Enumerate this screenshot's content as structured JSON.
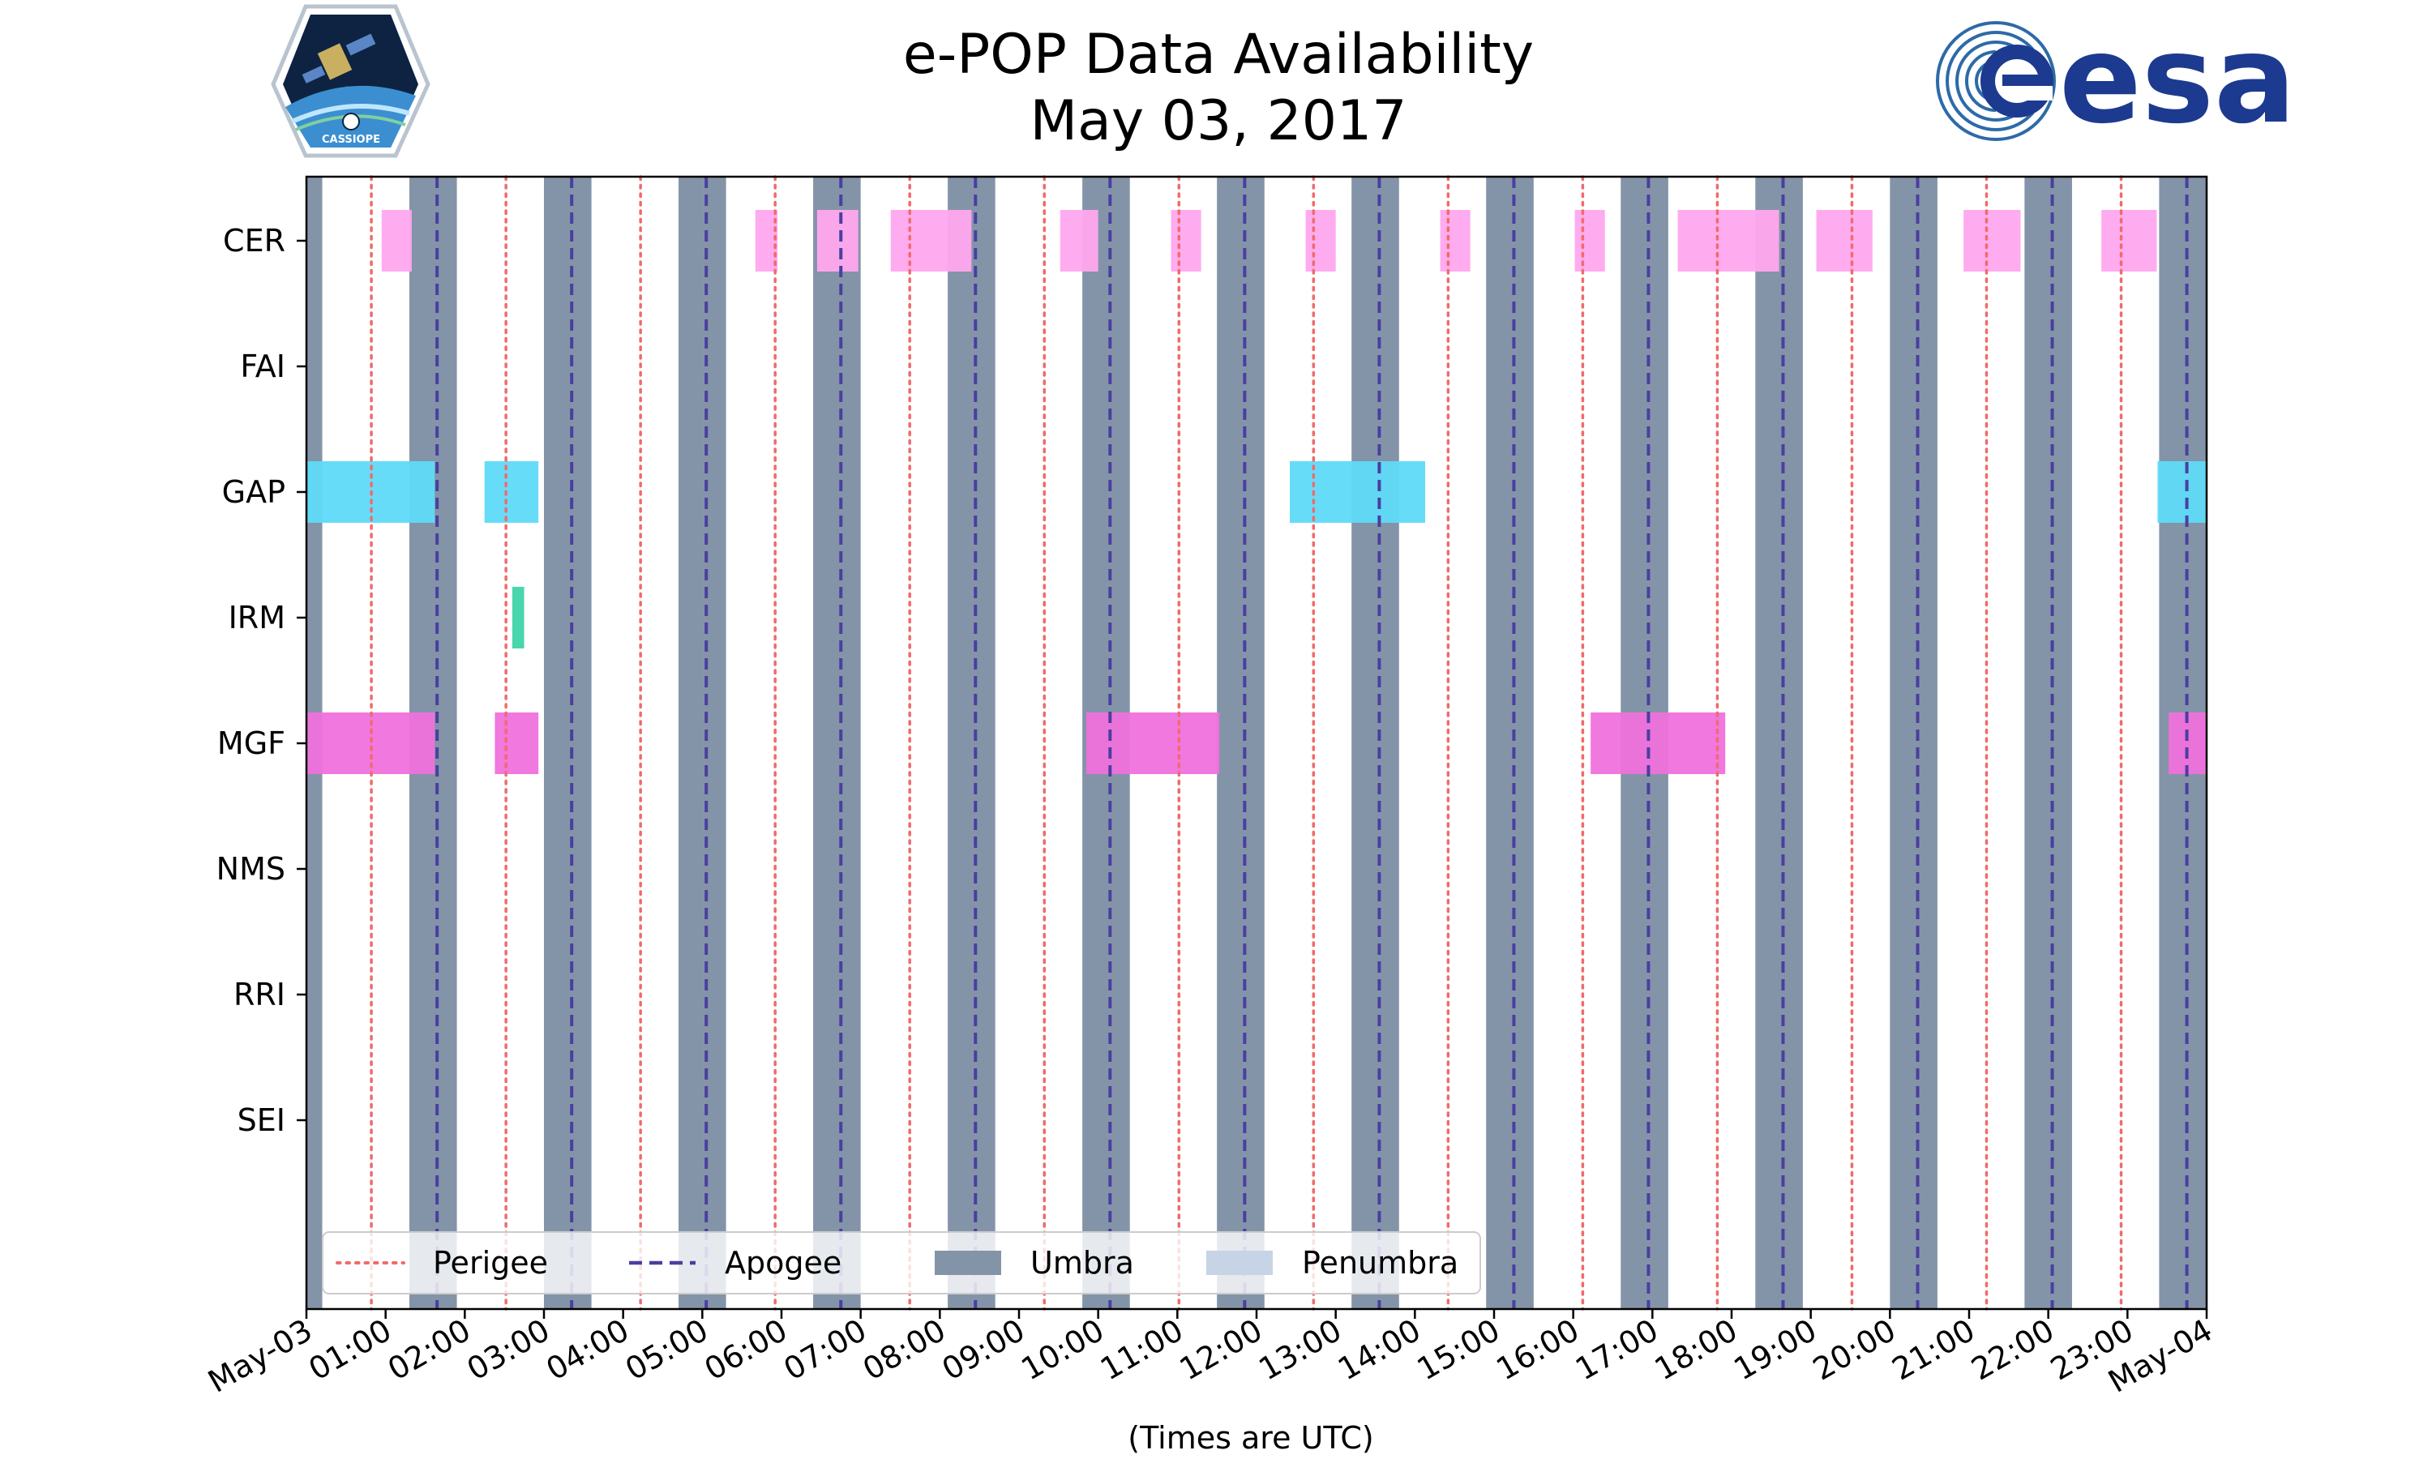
{
  "chart_data": {
    "type": "timeline",
    "title": "e-POP Data Availability",
    "subtitle": "May 03, 2017",
    "xlabel": "(Times are UTC)",
    "x_range_hours": [
      0,
      24
    ],
    "x_tick_labels": [
      "May-03",
      "01:00",
      "02:00",
      "03:00",
      "04:00",
      "05:00",
      "06:00",
      "07:00",
      "08:00",
      "09:00",
      "10:00",
      "11:00",
      "12:00",
      "13:00",
      "14:00",
      "15:00",
      "16:00",
      "17:00",
      "18:00",
      "19:00",
      "20:00",
      "21:00",
      "22:00",
      "23:00",
      "May-04"
    ],
    "instruments": [
      "CER",
      "FAI",
      "GAP",
      "IRM",
      "MGF",
      "NMS",
      "RRI",
      "SEI"
    ],
    "umbra_hours": [
      [
        -0.2,
        0.2
      ],
      [
        1.3,
        1.9
      ],
      [
        3.0,
        3.6
      ],
      [
        4.7,
        5.3
      ],
      [
        6.4,
        7.0
      ],
      [
        8.1,
        8.7
      ],
      [
        9.8,
        10.4
      ],
      [
        11.5,
        12.1
      ],
      [
        13.2,
        13.8
      ],
      [
        14.9,
        15.5
      ],
      [
        16.6,
        17.2
      ],
      [
        18.3,
        18.9
      ],
      [
        20.0,
        20.6
      ],
      [
        21.7,
        22.3
      ],
      [
        23.4,
        24.0
      ]
    ],
    "perigee_hours": [
      0.82,
      2.52,
      4.22,
      5.92,
      7.62,
      9.32,
      11.02,
      12.72,
      14.42,
      16.12,
      17.82,
      19.52,
      21.22,
      22.92
    ],
    "apogee_hours": [
      1.65,
      3.35,
      5.05,
      6.75,
      8.45,
      10.15,
      11.85,
      13.55,
      15.25,
      16.95,
      18.65,
      20.35,
      22.05,
      23.75
    ],
    "availability": {
      "CER": [
        [
          0.95,
          1.33
        ],
        [
          5.67,
          5.95
        ],
        [
          6.45,
          6.97
        ],
        [
          7.38,
          8.4
        ],
        [
          9.52,
          10.0
        ],
        [
          10.92,
          11.3
        ],
        [
          12.62,
          13.0
        ],
        [
          14.32,
          14.7
        ],
        [
          16.02,
          16.4
        ],
        [
          17.32,
          18.6
        ],
        [
          19.07,
          19.78
        ],
        [
          20.93,
          21.65
        ],
        [
          22.67,
          23.37
        ]
      ],
      "FAI": [],
      "GAP": [
        [
          0.0,
          1.62
        ],
        [
          2.25,
          2.93
        ],
        [
          12.42,
          14.13
        ],
        [
          23.38,
          24.0
        ]
      ],
      "IRM": [
        [
          2.6,
          2.75
        ]
      ],
      "MGF": [
        [
          0.0,
          1.62
        ],
        [
          2.38,
          2.93
        ],
        [
          9.85,
          11.53
        ],
        [
          16.22,
          17.92
        ],
        [
          23.52,
          24.0
        ]
      ],
      "NMS": [],
      "RRI": [],
      "SEI": []
    },
    "legend": {
      "placement": "lower-left",
      "entries": [
        {
          "label": "Perigee",
          "style": "dotted",
          "color": "#f06b6b"
        },
        {
          "label": "Apogee",
          "style": "dashed",
          "color": "#4a3f9f"
        },
        {
          "label": "Umbra",
          "style": "patch",
          "color": "#8494a8"
        },
        {
          "label": "Penumbra",
          "style": "patch",
          "color": "#c6d4e6"
        }
      ]
    },
    "instrument_colors": {
      "CER": "#ffa6ee",
      "GAP": "#5fdaf8",
      "IRM": "#3fd4a8",
      "MGF": "#ef71dc"
    },
    "umbra_color": "#8494a8",
    "perigee_color": "#f06b6b",
    "apogee_color": "#4a3f9f"
  },
  "logos": {
    "left_caption": "CASSIOPE",
    "right_text": "esa"
  }
}
